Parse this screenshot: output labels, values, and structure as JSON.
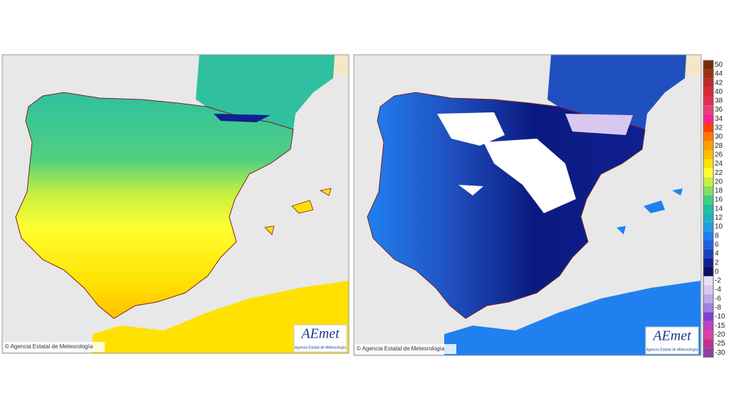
{
  "maps": [
    {
      "credit": "© Agencia Estatal de Meteorología",
      "logo": "AEmet",
      "logo_subtitle": "Agencia Estatal de Meteorología"
    },
    {
      "credit": "© Agencia Estatal de Meteorología",
      "logo": "AEmet",
      "logo_subtitle": "Agencia Estatal de Meteorología"
    }
  ],
  "legend": [
    {
      "value": 50,
      "color": "#7a2a0a"
    },
    {
      "value": 44,
      "color": "#9c3010"
    },
    {
      "value": 42,
      "color": "#c0282a"
    },
    {
      "value": 40,
      "color": "#d8283c"
    },
    {
      "value": 38,
      "color": "#e03050"
    },
    {
      "value": 36,
      "color": "#e8407a"
    },
    {
      "value": 34,
      "color": "#ff2090"
    },
    {
      "value": 32,
      "color": "#ff4000"
    },
    {
      "value": 30,
      "color": "#ff7a00"
    },
    {
      "value": 28,
      "color": "#ffa000"
    },
    {
      "value": 26,
      "color": "#ffc000"
    },
    {
      "value": 24,
      "color": "#ffe000"
    },
    {
      "value": 22,
      "color": "#ffff30"
    },
    {
      "value": 20,
      "color": "#c8f040"
    },
    {
      "value": 18,
      "color": "#80e060"
    },
    {
      "value": 16,
      "color": "#40d080"
    },
    {
      "value": 14,
      "color": "#20c0a0"
    },
    {
      "value": 12,
      "color": "#20b0c0"
    },
    {
      "value": 10,
      "color": "#20a0e0"
    },
    {
      "value": 8,
      "color": "#2080f0"
    },
    {
      "value": 6,
      "color": "#2060e0"
    },
    {
      "value": 4,
      "color": "#2040c0"
    },
    {
      "value": 2,
      "color": "#102090"
    },
    {
      "value": 0,
      "color": "#0a1060"
    },
    {
      "value": -2,
      "color": "#e8e0f8"
    },
    {
      "value": -4,
      "color": "#d8c8f0"
    },
    {
      "value": -6,
      "color": "#c0a8e8"
    },
    {
      "value": -8,
      "color": "#a080e0"
    },
    {
      "value": -10,
      "color": "#8040d0"
    },
    {
      "value": -15,
      "color": "#c040c0"
    },
    {
      "value": -20,
      "color": "#e040a0"
    },
    {
      "value": -25,
      "color": "#c03090"
    },
    {
      "value": -30,
      "color": "#9040a0"
    }
  ]
}
